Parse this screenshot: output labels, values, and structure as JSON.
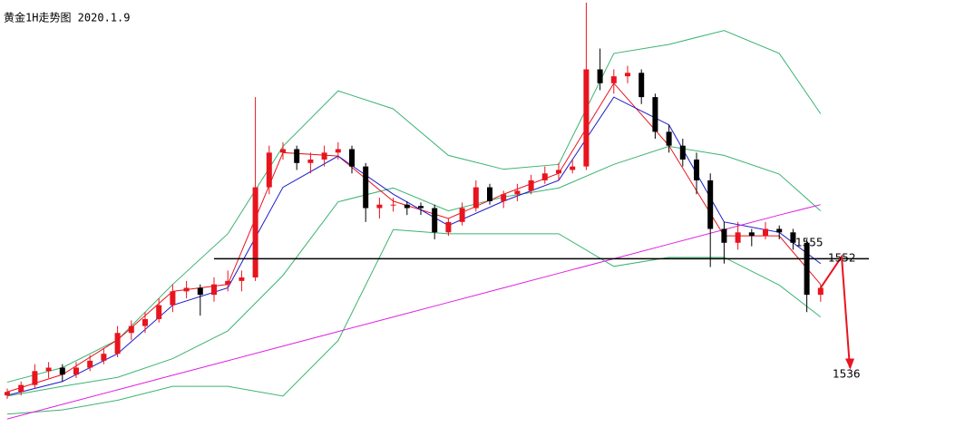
{
  "chart_data": {
    "type": "candlestick",
    "title": "黄金1H走势图 2020.1.9",
    "ylim": [
      1526,
      1589
    ],
    "up_color": "#e8141e",
    "down_color": "#000000",
    "open": [
      1532,
      1532.5,
      1533.5,
      1535.5,
      1536,
      1535,
      1536,
      1537,
      1538,
      1541,
      1542,
      1543,
      1545,
      1547,
      1547.5,
      1546.5,
      1548,
      1548.5,
      1549,
      1562,
      1567,
      1567.5,
      1565.5,
      1566,
      1567,
      1567.5,
      1565,
      1559,
      1559.5,
      1559.5,
      1559.3,
      1559,
      1555.5,
      1557,
      1559,
      1562,
      1560,
      1561,
      1561.5,
      1563,
      1564,
      1564.5,
      1565,
      1579,
      1577,
      1578,
      1578.5,
      1575,
      1570,
      1568,
      1566,
      1563,
      1556,
      1554,
      1555.5,
      1555,
      1556,
      1555.5,
      1554,
      1546.5
    ],
    "high": [
      1533,
      1534,
      1536.5,
      1536.8,
      1536.5,
      1536.8,
      1537.8,
      1538.8,
      1542,
      1542.8,
      1544,
      1546,
      1548,
      1548.5,
      1548,
      1549,
      1550,
      1550,
      1575,
      1568,
      1568.5,
      1568,
      1567,
      1568,
      1568.5,
      1568,
      1565.5,
      1560.5,
      1560.5,
      1560,
      1559.8,
      1559.5,
      1557.5,
      1559.8,
      1563,
      1562.5,
      1561.5,
      1562.5,
      1563.8,
      1565,
      1565.5,
      1566,
      1588.6,
      1582,
      1579,
      1579.5,
      1579,
      1575.5,
      1571,
      1569,
      1567,
      1564,
      1557,
      1557,
      1556,
      1557,
      1556.5,
      1556,
      1554.5,
      1548
    ],
    "low": [
      1531.5,
      1532,
      1533,
      1534.5,
      1534,
      1534.5,
      1535.5,
      1536.5,
      1537.5,
      1540,
      1541,
      1542.5,
      1544,
      1546,
      1543.5,
      1545.5,
      1547,
      1547,
      1548.5,
      1561,
      1566,
      1564.5,
      1564,
      1565,
      1566,
      1564,
      1557,
      1557.5,
      1558.5,
      1558,
      1558,
      1554.5,
      1555,
      1556.5,
      1558.5,
      1559.5,
      1559,
      1560,
      1561,
      1562.5,
      1563,
      1564,
      1564.5,
      1576,
      1575.5,
      1577,
      1574,
      1569,
      1567,
      1565,
      1561,
      1550.5,
      1551,
      1553,
      1553.5,
      1554.5,
      1554.5,
      1553,
      1544,
      1545.5
    ],
    "close": [
      1532.5,
      1533.5,
      1535.5,
      1536,
      1535,
      1536,
      1537,
      1538,
      1541,
      1542,
      1543,
      1545,
      1547,
      1547.5,
      1546.5,
      1548,
      1548.5,
      1549,
      1562,
      1567,
      1567.5,
      1565.5,
      1566,
      1567,
      1567.5,
      1565,
      1559,
      1559.5,
      1559.5,
      1559,
      1559,
      1555.5,
      1557,
      1559,
      1562,
      1560,
      1561,
      1561.5,
      1563,
      1564,
      1564.5,
      1565,
      1579,
      1577,
      1578,
      1578.5,
      1575,
      1570,
      1568,
      1566,
      1563,
      1556,
      1554,
      1555.5,
      1555,
      1556,
      1555.5,
      1554,
      1546.5,
      1547.5
    ],
    "lines": {
      "x": [
        0,
        4,
        8,
        12,
        16,
        20,
        24,
        28,
        32,
        36,
        40,
        44,
        48,
        52,
        56,
        59
      ],
      "series": [
        {
          "color": "#3cb371",
          "values": [
            1533.9,
            1536,
            1540,
            1548,
            1555.3,
            1567.9,
            1575.9,
            1573.3,
            1566.6,
            1564.6,
            1565.3,
            1581.3,
            1582.6,
            1584.6,
            1581.3,
            1572.6
          ]
        },
        {
          "color": "#3cb371",
          "values": [
            1531.9,
            1533.3,
            1534.6,
            1537.3,
            1541.3,
            1549.3,
            1559.9,
            1561.9,
            1558.6,
            1560.6,
            1561.9,
            1565.3,
            1567.9,
            1566.6,
            1563.9,
            1558.6
          ]
        },
        {
          "color": "#3cb371",
          "values": [
            1529.3,
            1529.9,
            1531.3,
            1533.3,
            1533.3,
            1531.9,
            1539.9,
            1555.9,
            1555.3,
            1555.3,
            1555.3,
            1550.6,
            1551.9,
            1551.9,
            1547.9,
            1543.3
          ]
        },
        {
          "color": "#e8141e",
          "values": [
            1532.5,
            1535,
            1540,
            1547,
            1548,
            1567,
            1566.5,
            1560,
            1557.5,
            1561,
            1564,
            1577,
            1568,
            1555,
            1555,
            1548
          ]
        },
        {
          "color": "#1a1acc",
          "values": [
            1532,
            1534,
            1538,
            1545,
            1547.5,
            1562,
            1566.5,
            1561,
            1556.5,
            1560,
            1563,
            1575,
            1571,
            1557,
            1555.5,
            1551
          ]
        },
        {
          "color": "#e020e0",
          "values": [
            1528.6,
            1530.7,
            1532.8,
            1534.9,
            1537,
            1539.1,
            1541.2,
            1543.3,
            1545.4,
            1547.5,
            1549.6,
            1551.7,
            1553.8,
            1555.9,
            1558,
            1559.5
          ]
        }
      ]
    },
    "support": {
      "value": 1551.7,
      "color": "#000000"
    },
    "forecast": {
      "color": "#e8141e",
      "values": [
        1547.5,
        1552,
        1536
      ]
    },
    "annotations": [
      "1555",
      "1552",
      "1536"
    ]
  }
}
